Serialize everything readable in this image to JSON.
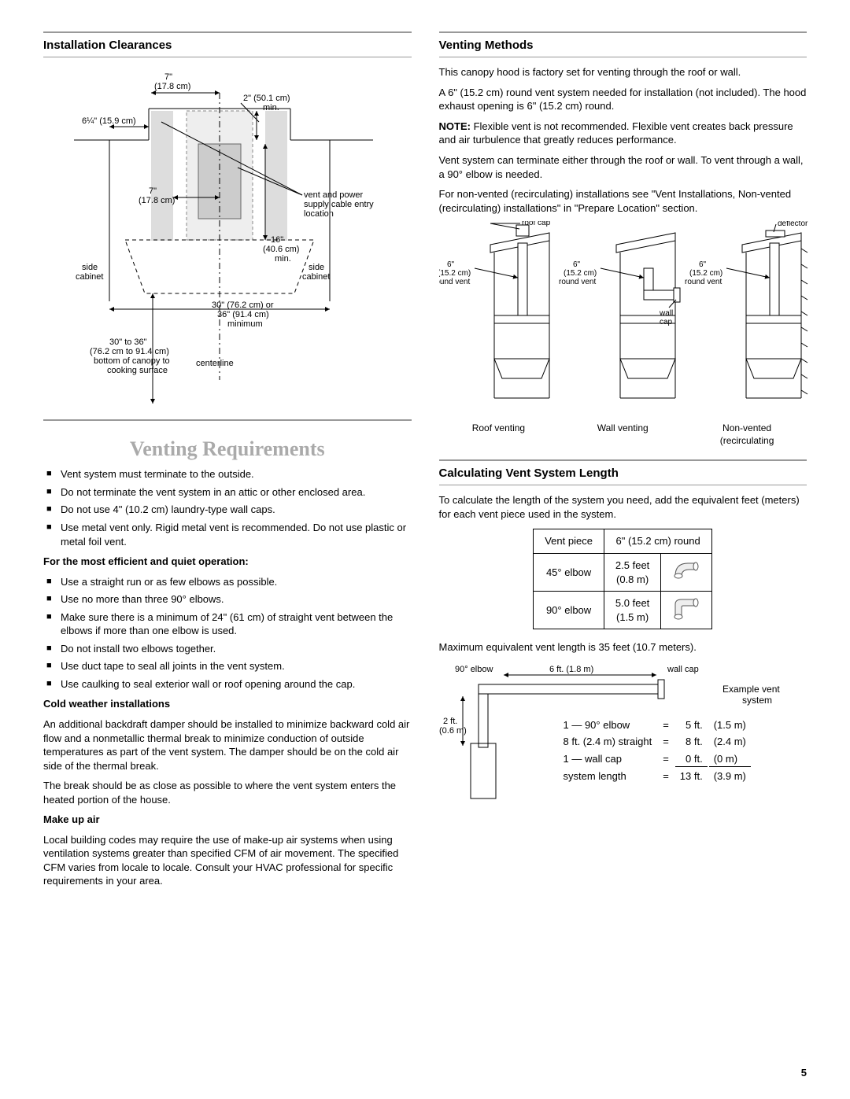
{
  "left": {
    "sec1_title": "Installation Clearances",
    "diagram": {
      "d_7in": "7\"",
      "d_7in_cm": "(17.8 cm)",
      "d_2in": "2\" (50.1 cm)",
      "d_2in_min": "min.",
      "d_6qtr": "6¼\" (15.9 cm)",
      "d_7in2": "7\"",
      "d_7in2_cm": "(17.8 cm)",
      "vent_power": "vent and power",
      "supply_cable": "supply cable entry",
      "location": "location",
      "d_16in": "16\"",
      "d_16in_cm": "(40.6 cm)",
      "d_16in_min": "min.",
      "side_cab_l": "side",
      "side_cab_l2": "cabinet",
      "side_cab_r": "side",
      "side_cab_r2": "cabinet",
      "d_30_or": "30\" (76.2 cm) or",
      "d_36": "36\" (91.4 cm)",
      "d_minimum": "minimum",
      "d_30_36": "30\" to 36\"",
      "d_30_36_cm": "(76.2 cm to 91.4 cm)",
      "bottom_canopy": "bottom of canopy to",
      "cooking_surface": "cooking surface",
      "centerline": "centerline"
    },
    "vr_title": "Venting Requirements",
    "vr_list1": [
      "Vent system must terminate to the outside.",
      "Do not terminate the vent system in an attic or other enclosed area.",
      "Do not use 4\" (10.2 cm) laundry-type wall caps.",
      "Use metal vent only. Rigid metal vent is recommended. Do not use plastic or metal foil vent."
    ],
    "vr_sub1": "For the most efficient and quiet operation:",
    "vr_list2": [
      "Use a straight run or as few elbows as possible.",
      "Use no more than three 90° elbows.",
      "Make sure there is a minimum of 24\" (61 cm) of straight vent between the elbows if more than one elbow is used.",
      "Do not install two elbows together.",
      "Use duct tape to seal all joints in the vent system.",
      "Use caulking to seal exterior wall or roof opening around the cap."
    ],
    "cold_h": "Cold weather installations",
    "cold_p1": "An additional backdraft damper should be installed to minimize backward cold air flow and a nonmetallic thermal break to minimize conduction of outside temperatures as part of the vent system. The damper should be on the cold air side of the thermal break.",
    "cold_p2": "The break should be as close as possible to where the vent system enters the heated portion of the house.",
    "makeup_h": "Make up air",
    "makeup_p": "Local building codes may require the use of make-up air systems when using ventilation systems greater than specified CFM of air movement. The specified CFM varies from locale to locale. Consult your HVAC professional for specific requirements in your area."
  },
  "right": {
    "vm_title": "Venting Methods",
    "vm_p1": "This canopy hood is factory set for venting through the roof or wall.",
    "vm_p2": "A 6\" (15.2 cm) round vent system needed for installation (not included). The hood exhaust opening is 6\" (15.2 cm) round.",
    "vm_note_b": "NOTE:",
    "vm_note": " Flexible vent is not recommended. Flexible vent creates back pressure and air turbulence that greatly reduces performance.",
    "vm_p3": "Vent system can terminate either through the roof or wall. To vent through a wall, a 90° elbow is needed.",
    "vm_p4": "For non-vented (recirculating) installations see \"Vent Installations, Non-vented (recirculating) installations\" in \"Prepare Location\" section.",
    "vm_labels": {
      "roof_cap": "roof cap",
      "deflector": "deflector",
      "six": "6\"",
      "six_cm": "(15.2 cm)",
      "round_vent": "round vent",
      "wall_cap": "wall",
      "wall_cap2": "cap",
      "roof_venting": "Roof venting",
      "wall_venting": "Wall venting",
      "non_vented": "Non-vented",
      "recirc": "(recirculating"
    },
    "calc_title": "Calculating Vent System Length",
    "calc_p1": "To calculate the length of the system you need, add the equivalent feet (meters) for each vent piece used in the system.",
    "table": {
      "h1": "Vent piece",
      "h2": "6\" (15.2 cm) round",
      "r1c1": "45° elbow",
      "r1c2a": "2.5 feet",
      "r1c2b": "(0.8 m)",
      "r2c1": "90° elbow",
      "r2c2a": "5.0 feet",
      "r2c2b": "(1.5 m)"
    },
    "max_p": "Maximum equivalent vent length is 35 feet (10.7 meters).",
    "example": {
      "elbow_lbl": "90° elbow",
      "six_ft": "6 ft. (1.8 m)",
      "wall_cap": "wall cap",
      "two_ft": "2 ft.",
      "two_ft_m": "(0.6 m)",
      "ex_title1": "Example vent",
      "ex_title2": "system",
      "row1_a": "1 — 90° elbow",
      "row1_b": "=",
      "row1_c": "5 ft.",
      "row1_d": "(1.5 m)",
      "row2_a": "8 ft. (2.4 m) straight",
      "row2_b": "=",
      "row2_c": "8 ft.",
      "row2_d": "(2.4 m)",
      "row3_a": "1 — wall cap",
      "row3_b": "=",
      "row3_c": "0 ft.",
      "row3_d": "(0 m)",
      "row4_a": "system length",
      "row4_b": "=",
      "row4_c": "13 ft.",
      "row4_d": "(3.9 m)"
    }
  },
  "page": "5"
}
